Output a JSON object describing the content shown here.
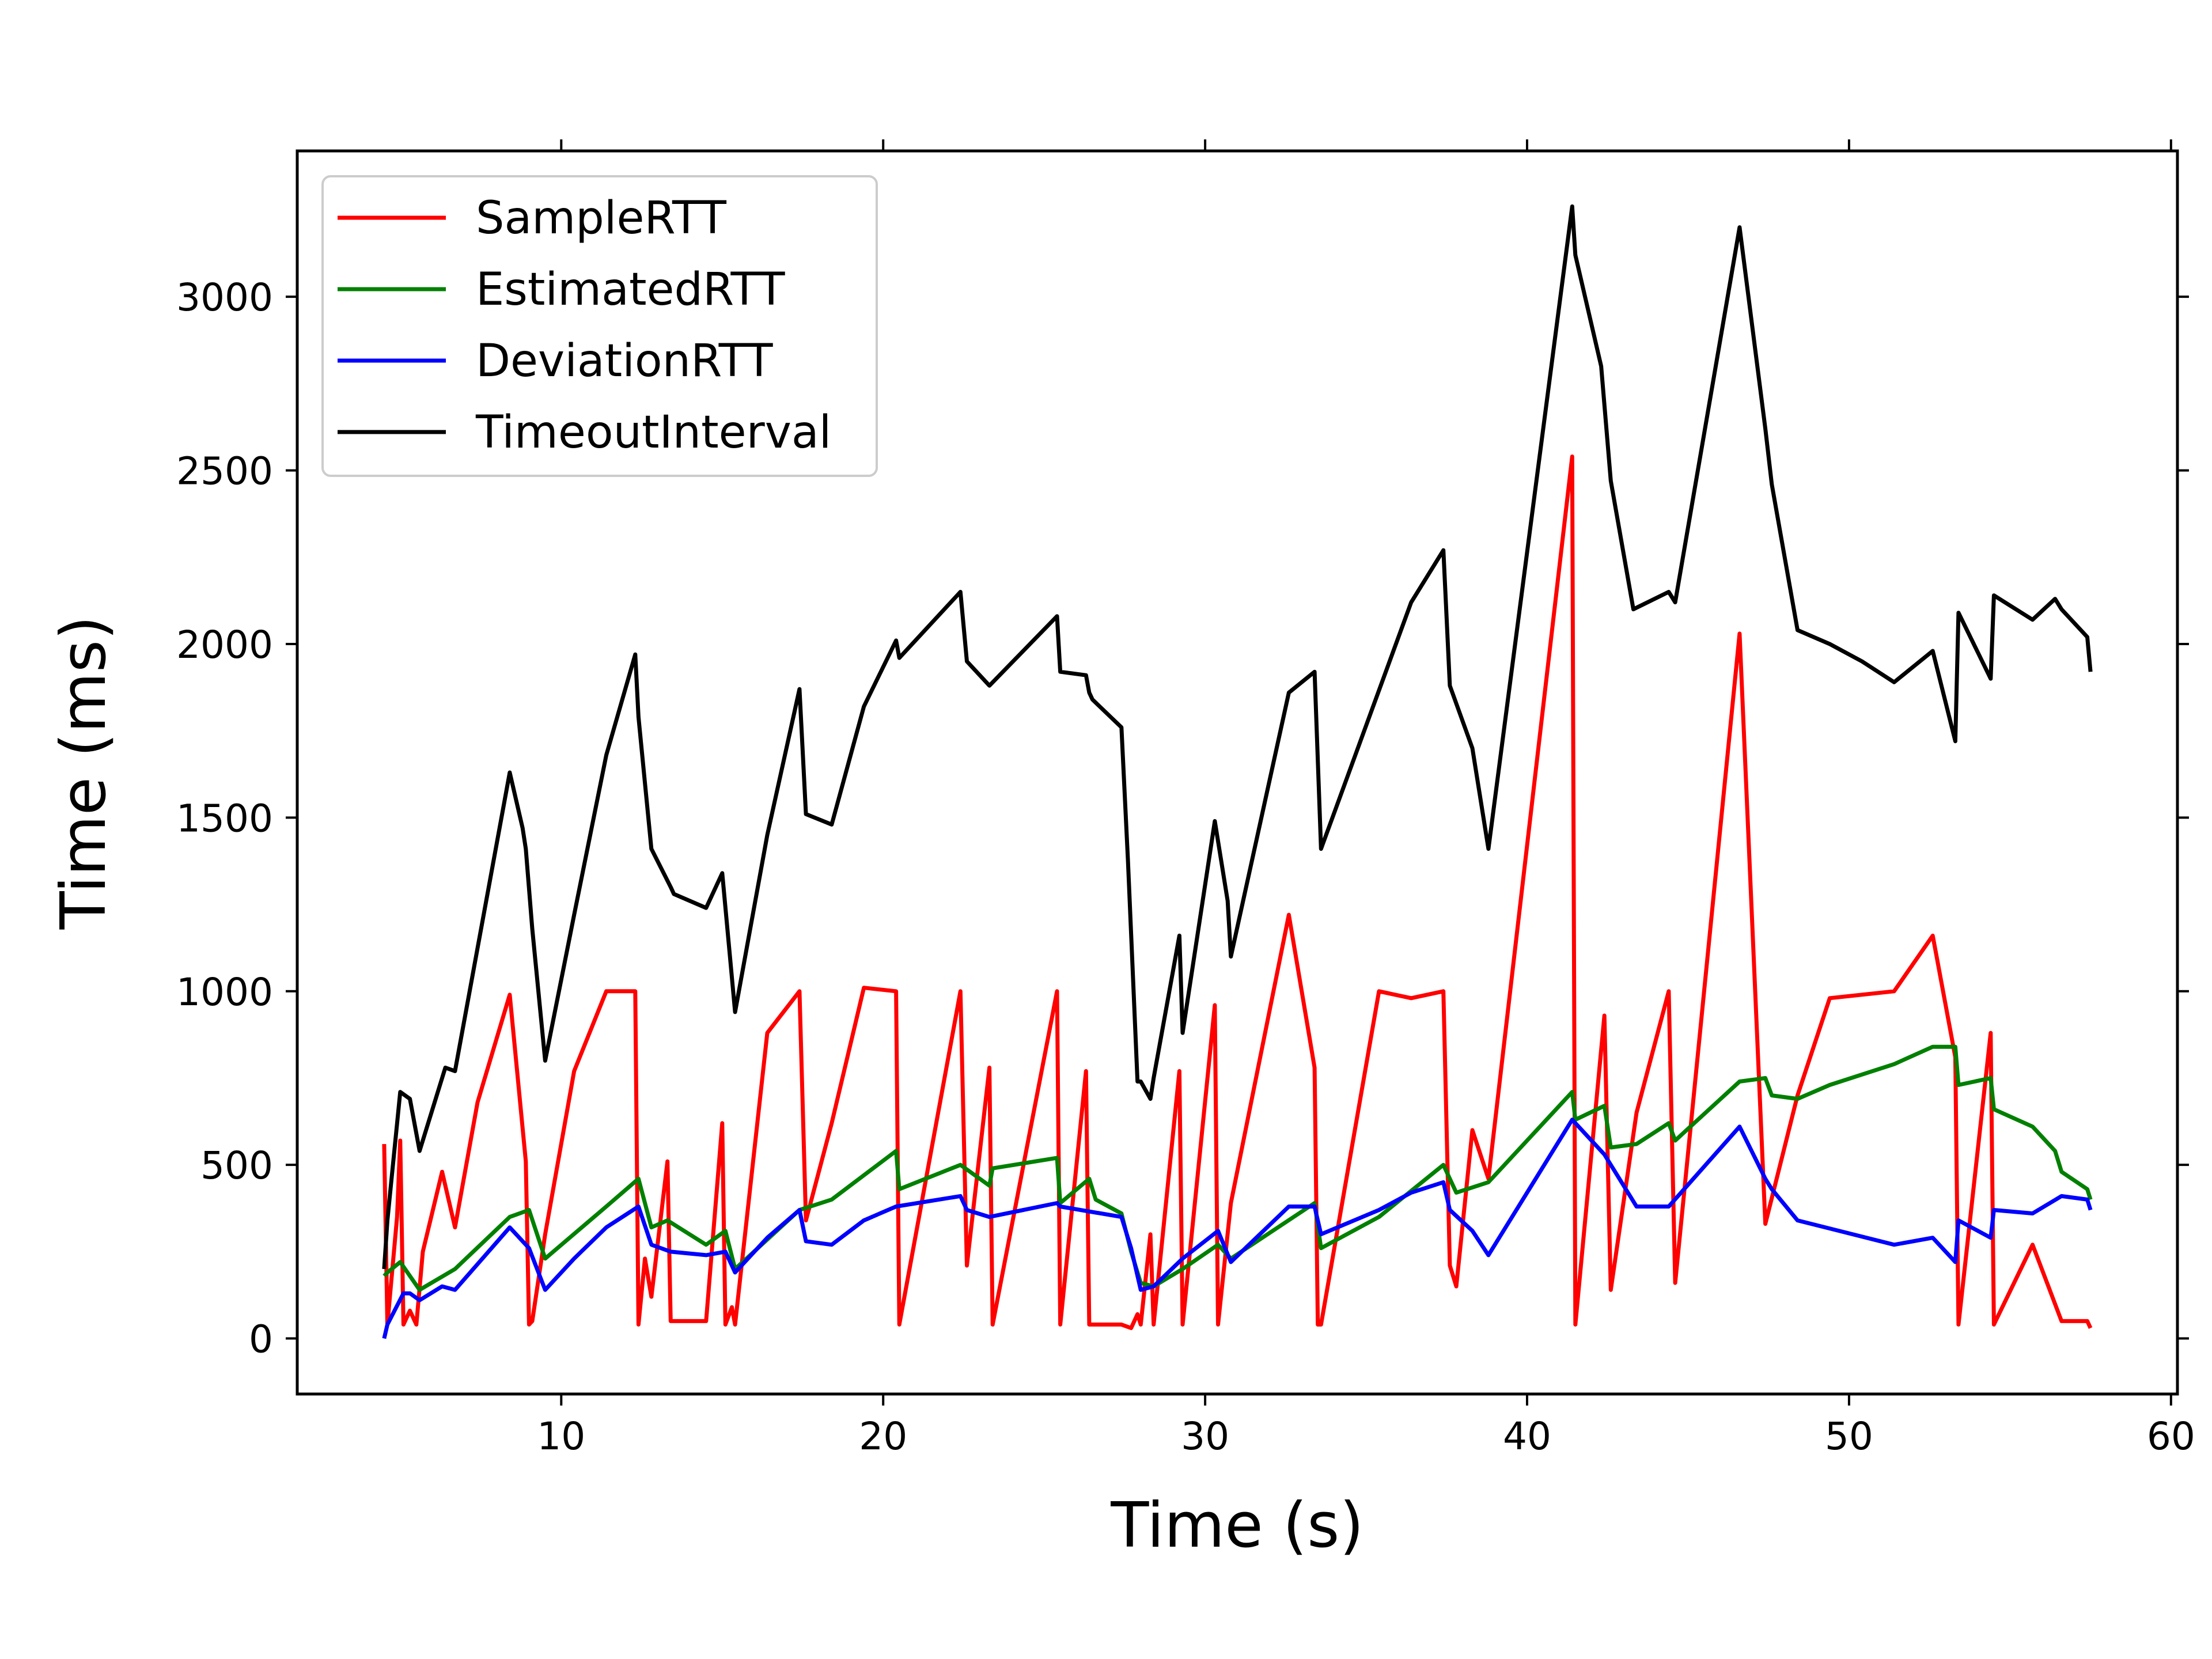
{
  "chart_data": {
    "type": "line",
    "title": "",
    "xlabel": "Time (s)",
    "ylabel": "Time (ms)",
    "xlim": [
      1.8,
      60.2
    ],
    "ylim": [
      -160,
      3420
    ],
    "xticks": [
      10,
      20,
      30,
      40,
      50,
      60
    ],
    "yticks": [
      0,
      500,
      1000,
      1500,
      2000,
      2500,
      3000
    ],
    "grid": false,
    "legend_position": "top-left",
    "series": [
      {
        "name": "SampleRTT",
        "color": "#ff0000",
        "x": [
          4.5,
          4.6,
          4.9,
          5.0,
          5.1,
          5.3,
          5.5,
          5.7,
          6.3,
          6.7,
          7.4,
          8.4,
          8.9,
          9.0,
          9.1,
          9.5,
          10.4,
          11.4,
          12.3,
          12.4,
          12.6,
          12.8,
          13.3,
          13.4,
          14.5,
          15.0,
          15.1,
          15.3,
          15.4,
          16.4,
          17.4,
          17.6,
          18.4,
          19.4,
          20.4,
          20.5,
          22.4,
          22.6,
          23.3,
          23.4,
          25.4,
          25.5,
          26.3,
          26.4,
          26.6,
          27.4,
          27.7,
          27.9,
          28.0,
          28.3,
          28.4,
          29.2,
          29.3,
          30.3,
          30.4,
          30.8,
          32.6,
          33.4,
          33.5,
          33.6,
          35.4,
          36.4,
          37.4,
          37.6,
          37.8,
          38.3,
          38.8,
          41.4,
          41.5,
          42.4,
          42.6,
          43.4,
          44.4,
          44.6,
          46.6,
          47.4,
          48.4,
          49.4,
          50.4,
          51.4,
          52.6,
          53.3,
          53.4,
          54.4,
          54.5,
          55.7,
          56.6,
          56.7,
          57.4,
          57.5
        ],
        "values": [
          560,
          40,
          350,
          570,
          40,
          80,
          40,
          250,
          480,
          320,
          680,
          990,
          510,
          40,
          50,
          300,
          770,
          1000,
          1000,
          40,
          230,
          120,
          510,
          50,
          50,
          620,
          40,
          90,
          40,
          880,
          1000,
          340,
          620,
          1010,
          1000,
          40,
          1000,
          210,
          780,
          40,
          1000,
          40,
          770,
          40,
          40,
          40,
          30,
          70,
          40,
          300,
          40,
          770,
          40,
          960,
          40,
          390,
          1220,
          780,
          40,
          40,
          1000,
          980,
          1000,
          210,
          150,
          600,
          460,
          2540,
          40,
          930,
          140,
          650,
          1000,
          160,
          2030,
          330,
          700,
          980,
          990,
          1000,
          1160,
          810,
          40,
          880,
          40,
          270,
          50,
          50,
          50,
          30
        ]
      },
      {
        "name": "EstimatedRTT",
        "color": "#008000",
        "x": [
          4.5,
          4.6,
          5.0,
          5.6,
          6.7,
          8.4,
          9.0,
          9.5,
          11.4,
          12.4,
          12.8,
          13.3,
          14.5,
          15.1,
          15.4,
          17.4,
          18.4,
          20.4,
          20.5,
          22.4,
          23.3,
          23.4,
          25.4,
          25.5,
          26.4,
          26.6,
          27.4,
          27.7,
          28.0,
          28.4,
          29.3,
          30.4,
          30.8,
          33.4,
          33.6,
          35.4,
          37.4,
          37.8,
          38.8,
          41.4,
          41.5,
          42.4,
          42.6,
          43.4,
          44.4,
          44.6,
          46.6,
          47.4,
          47.6,
          48.4,
          49.4,
          51.4,
          52.6,
          53.3,
          53.4,
          54.4,
          54.5,
          55.7,
          56.4,
          56.6,
          57.4,
          57.5
        ],
        "values": [
          180,
          190,
          220,
          140,
          200,
          350,
          370,
          230,
          380,
          460,
          320,
          340,
          270,
          310,
          200,
          370,
          400,
          540,
          430,
          500,
          440,
          490,
          520,
          390,
          460,
          400,
          360,
          250,
          160,
          150,
          200,
          270,
          230,
          390,
          260,
          350,
          500,
          420,
          450,
          710,
          630,
          670,
          550,
          560,
          620,
          570,
          740,
          750,
          700,
          690,
          730,
          790,
          840,
          840,
          730,
          750,
          660,
          610,
          540,
          480,
          430,
          400
        ]
      },
      {
        "name": "DeviationRTT",
        "color": "#0000ff",
        "x": [
          4.5,
          4.6,
          5.1,
          5.3,
          5.6,
          6.3,
          6.7,
          8.4,
          9.0,
          9.5,
          10.4,
          11.4,
          12.4,
          12.8,
          13.4,
          14.5,
          15.1,
          15.4,
          16.4,
          17.4,
          17.6,
          18.4,
          19.4,
          20.4,
          22.4,
          22.6,
          23.3,
          25.4,
          25.5,
          27.4,
          27.7,
          28.0,
          28.4,
          29.3,
          30.4,
          30.8,
          32.6,
          33.4,
          33.6,
          35.4,
          36.4,
          37.4,
          37.6,
          38.3,
          38.8,
          41.4,
          42.4,
          43.4,
          44.4,
          46.6,
          47.4,
          47.6,
          48.4,
          51.4,
          52.6,
          53.3,
          53.4,
          54.4,
          54.5,
          55.7,
          56.6,
          57.4,
          57.5
        ],
        "values": [
          0,
          40,
          130,
          130,
          110,
          150,
          140,
          320,
          260,
          140,
          230,
          320,
          380,
          270,
          250,
          240,
          250,
          190,
          290,
          370,
          280,
          270,
          340,
          380,
          410,
          370,
          350,
          390,
          380,
          350,
          260,
          140,
          150,
          230,
          310,
          220,
          380,
          380,
          300,
          370,
          420,
          450,
          370,
          310,
          240,
          630,
          530,
          380,
          380,
          610,
          460,
          430,
          340,
          270,
          290,
          220,
          340,
          290,
          370,
          360,
          410,
          400,
          370
        ]
      },
      {
        "name": "TimeoutInterval",
        "color": "#000000",
        "x": [
          4.5,
          4.6,
          5.0,
          5.3,
          5.6,
          6.4,
          6.7,
          8.4,
          8.8,
          8.9,
          9.1,
          9.5,
          10.4,
          11.4,
          12.3,
          12.4,
          12.8,
          13.4,
          13.5,
          14.5,
          15.0,
          15.4,
          16.4,
          17.4,
          17.6,
          18.4,
          19.4,
          20.4,
          20.5,
          22.4,
          22.6,
          23.3,
          25.4,
          25.5,
          26.3,
          26.4,
          26.5,
          27.4,
          27.6,
          27.9,
          28.0,
          28.3,
          28.4,
          29.2,
          29.3,
          30.3,
          30.7,
          30.8,
          32.6,
          33.4,
          33.6,
          36.4,
          37.4,
          37.6,
          38.3,
          38.8,
          41.4,
          41.5,
          42.3,
          42.6,
          43.3,
          44.4,
          44.6,
          46.6,
          47.4,
          47.6,
          48.4,
          49.4,
          50.4,
          51.4,
          52.6,
          53.3,
          53.4,
          54.4,
          54.5,
          55.7,
          56.4,
          56.6,
          57.4,
          57.5
        ],
        "values": [
          200,
          340,
          710,
          690,
          540,
          780,
          770,
          1630,
          1470,
          1410,
          1180,
          800,
          1220,
          1680,
          1970,
          1790,
          1410,
          1300,
          1280,
          1240,
          1340,
          940,
          1450,
          1870,
          1510,
          1480,
          1820,
          2010,
          1960,
          2150,
          1950,
          1880,
          2080,
          1920,
          1910,
          1860,
          1840,
          1760,
          1380,
          740,
          740,
          690,
          750,
          1160,
          880,
          1490,
          1260,
          1100,
          1860,
          1920,
          1410,
          2120,
          2270,
          1880,
          1700,
          1410,
          3260,
          3120,
          2800,
          2470,
          2100,
          2150,
          2120,
          3200,
          2620,
          2460,
          2040,
          2000,
          1950,
          1890,
          1980,
          1720,
          2090,
          1900,
          2140,
          2070,
          2130,
          2100,
          2020,
          1920
        ]
      }
    ]
  }
}
